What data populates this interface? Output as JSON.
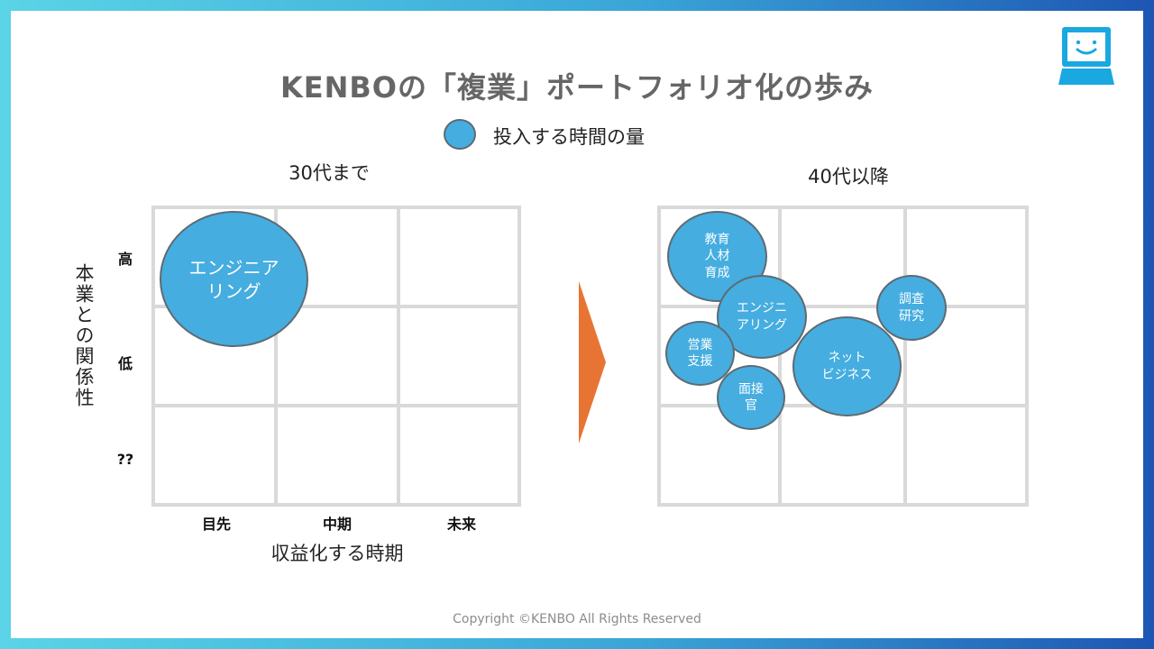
{
  "title": "KENBOの「複業」ポートフォリオ化の歩み",
  "legend": {
    "label": "投入する時間の量"
  },
  "left_panel": {
    "heading": "30代まで",
    "row_labels": [
      "高",
      "低",
      "??"
    ],
    "col_labels": [
      "目先",
      "中期",
      "未来"
    ],
    "y_axis_title": "本業との関係性",
    "x_axis_title": "収益化する時期",
    "bubbles": [
      {
        "label": "エンジニア\nリング"
      }
    ]
  },
  "right_panel": {
    "heading": "40代以降",
    "bubbles": [
      {
        "label": "教育\n人材\n育成"
      },
      {
        "label": "エンジニ\nアリング"
      },
      {
        "label": "営業\n支援"
      },
      {
        "label": "面接\n官"
      },
      {
        "label": "ネット\nビジネス"
      },
      {
        "label": "調査\n研究"
      }
    ]
  },
  "colors": {
    "bubble": "#45ade0",
    "bubble_border": "#5e6b73",
    "arrow": "#e87433",
    "grid": "#d9d9d9"
  },
  "icons": {
    "logo": "smiling-laptop-icon",
    "arrow": "triangle-right-icon"
  },
  "footer": {
    "copyright": "Copyright ©KENBO All Rights Reserved"
  }
}
